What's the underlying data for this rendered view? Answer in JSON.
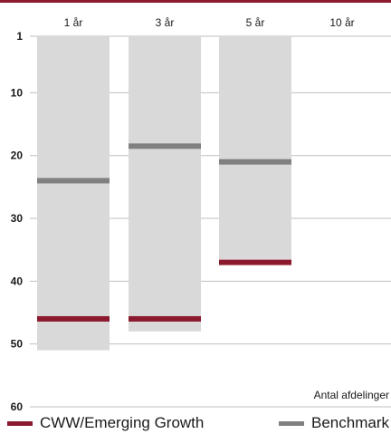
{
  "chart_data": {
    "type": "bar",
    "categories": [
      "1 år",
      "3 år",
      "5 år",
      "10 år"
    ],
    "y_ticks": [
      "1",
      "10",
      "20",
      "30",
      "40",
      "50",
      "60"
    ],
    "ylim": [
      1,
      60
    ],
    "y_axis_inverted": true,
    "ranges": [
      {
        "category": "1 år",
        "top": 1,
        "bottom": 51
      },
      {
        "category": "3 år",
        "top": 1,
        "bottom": 48
      },
      {
        "category": "5 år",
        "top": 1,
        "bottom": 36.5
      },
      {
        "category": "10 år",
        "top": null,
        "bottom": null
      }
    ],
    "series": [
      {
        "name": "CWW/Emerging Growth",
        "values": [
          46,
          46,
          37,
          null
        ]
      },
      {
        "name": "Benchmark",
        "values": [
          24,
          18.5,
          21,
          null
        ]
      }
    ],
    "xlabel": "Antal afdelinger",
    "legend_position": "bottom",
    "grid": true
  },
  "colors": {
    "top_rule": "#8b1a2e",
    "range_bar": "#d9d9d9",
    "fund": "#8b1a2e",
    "benchmark": "#808080",
    "gridline": "#bfbfbf"
  },
  "legend": {
    "fund_label": "CWW/Emerging Growth",
    "benchmark_label": "Benchmark"
  }
}
